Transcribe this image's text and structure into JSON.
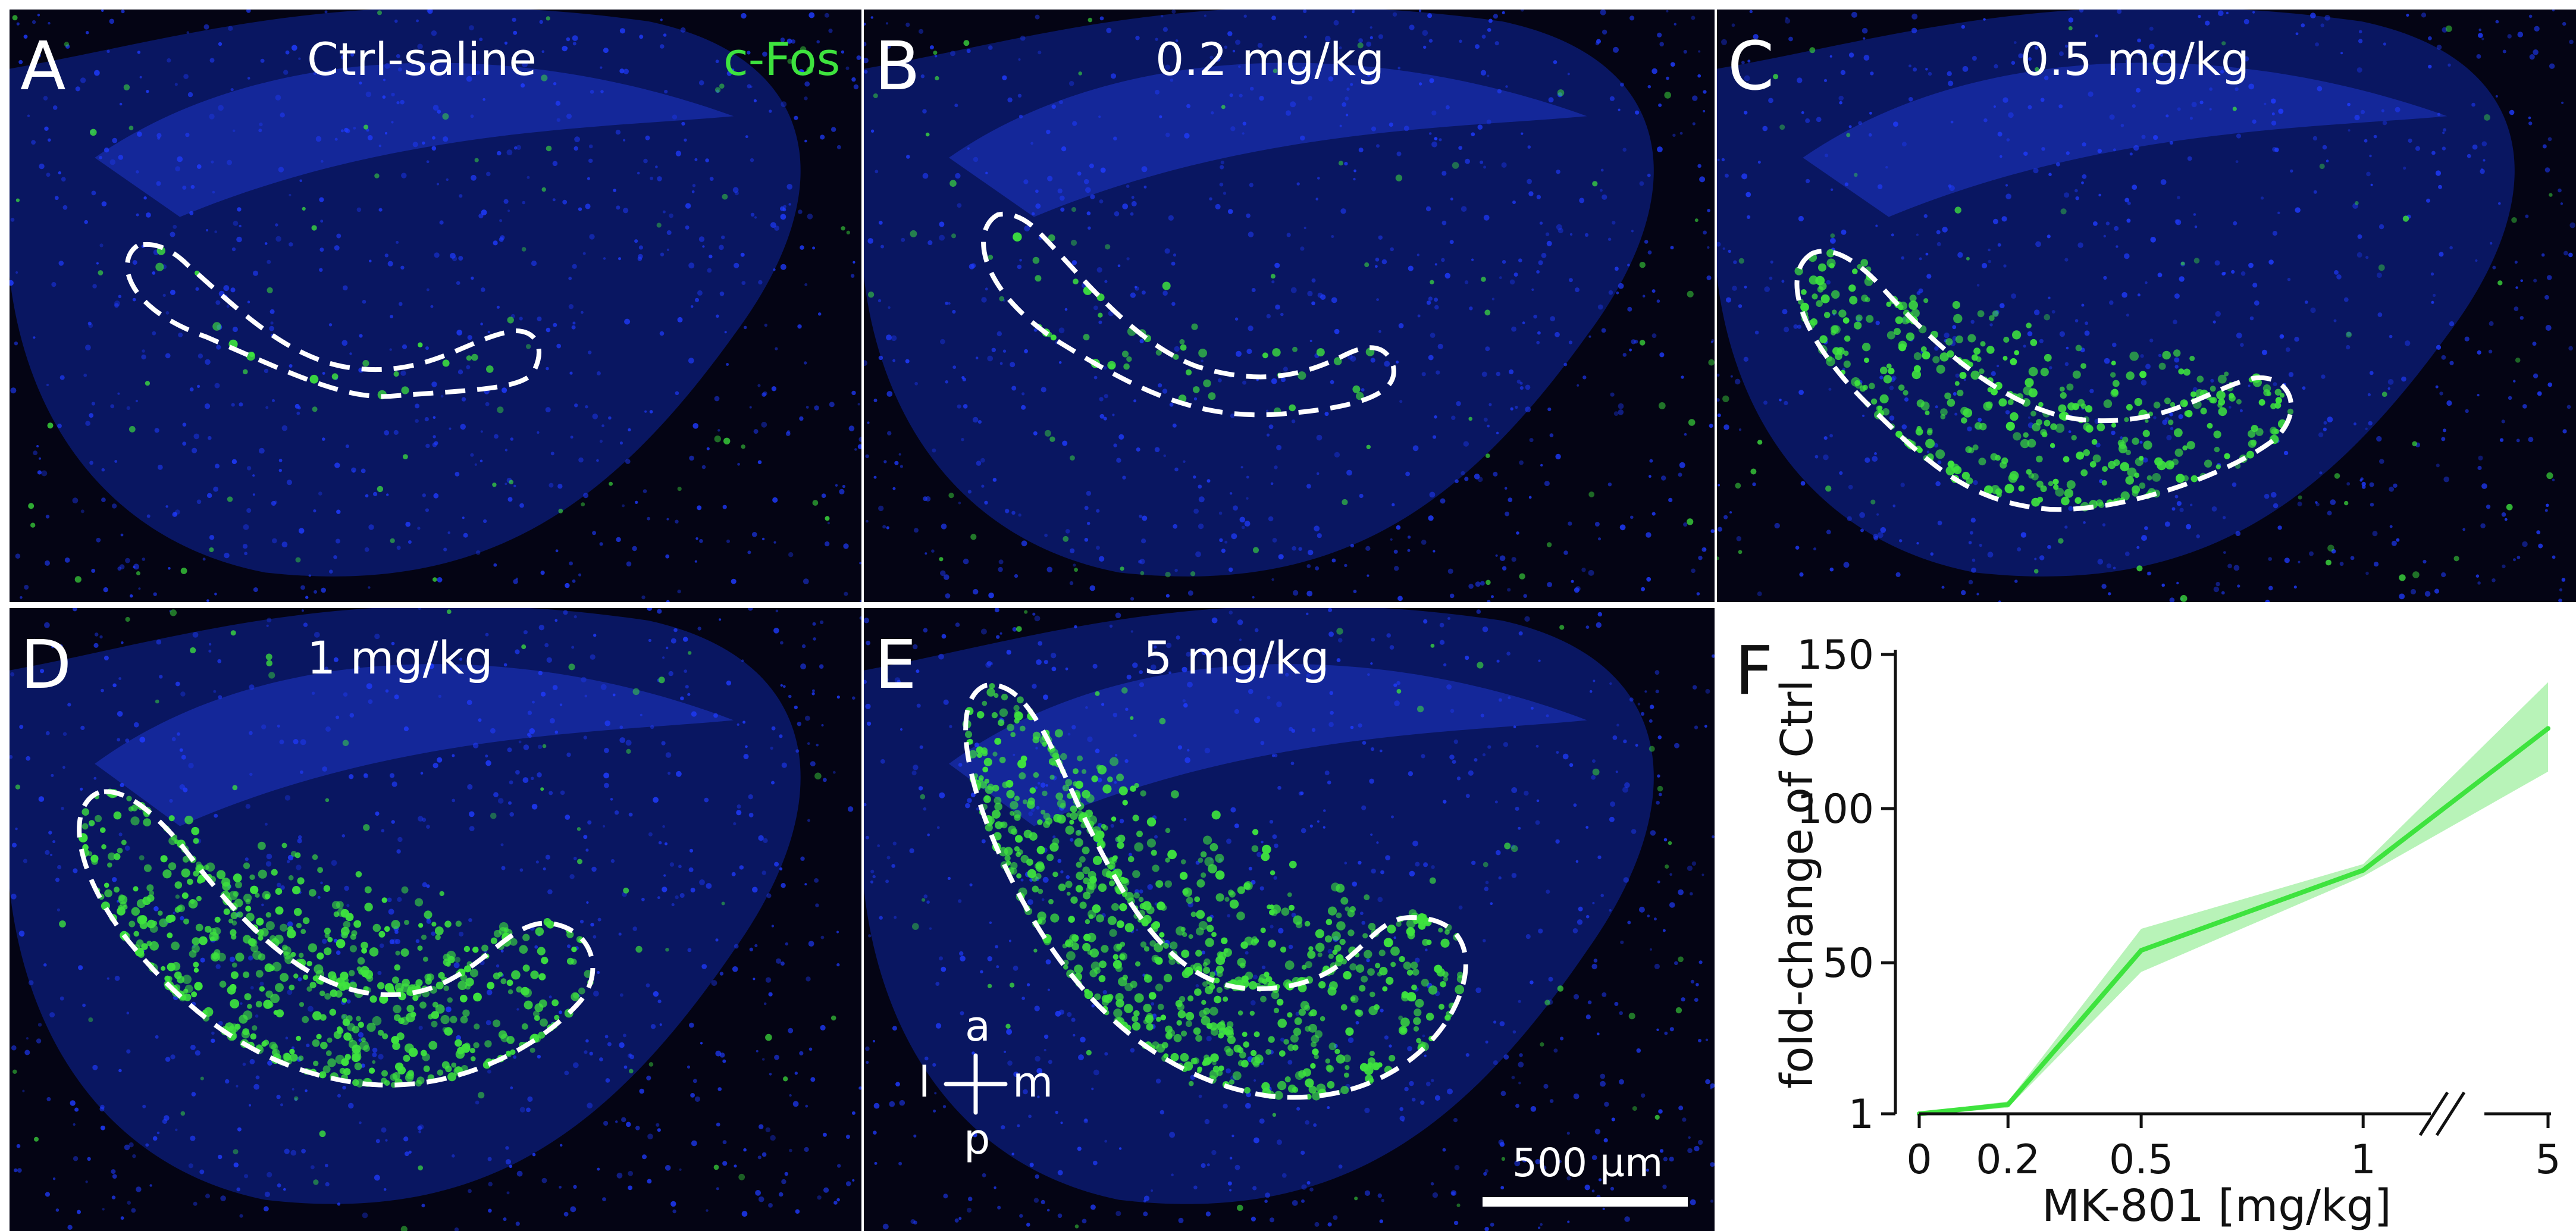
{
  "panels": [
    {
      "id": "A",
      "letter": "A",
      "title": "Ctrl-saline",
      "marker": "c-Fos",
      "cfos_density": 0.02
    },
    {
      "id": "B",
      "letter": "B",
      "title": "0.2 mg/kg",
      "cfos_density": 0.05
    },
    {
      "id": "C",
      "letter": "C",
      "title": "0.5 mg/kg",
      "cfos_density": 0.45
    },
    {
      "id": "D",
      "letter": "D",
      "title": "1 mg/kg",
      "cfos_density": 0.7
    },
    {
      "id": "E",
      "letter": "E",
      "title": "5 mg/kg",
      "cfos_density": 0.9
    }
  ],
  "marker_color": "#3ee33e",
  "nuclei_color": "#1f3bff",
  "outline_color": "#ffffff",
  "orientation": {
    "anterior": "a",
    "posterior": "p",
    "lateral": "l",
    "medial": "m"
  },
  "scale_bar": {
    "label": "500 µm"
  },
  "chart_data": {
    "type": "line",
    "panel_letter": "F",
    "x": [
      0,
      0.2,
      0.5,
      1,
      5
    ],
    "x_tick_labels": [
      "0",
      "0.2",
      "0.5",
      "1",
      "5"
    ],
    "x_axis_break": true,
    "series": [
      {
        "values": [
          1,
          4,
          54,
          80,
          126
        ],
        "ci_lower": [
          0.5,
          3,
          47,
          78,
          112
        ],
        "ci_upper": [
          1.5,
          5,
          61,
          82,
          141
        ],
        "color": "#3ee33e",
        "band_color": "#a6f0a6"
      }
    ],
    "y_tick_labels": [
      "1",
      "50",
      "100",
      "150"
    ],
    "y_ticks": [
      1,
      50,
      100,
      150
    ],
    "ylim": [
      1,
      150
    ],
    "xlabel": "MK-801 [mg/kg]",
    "ylabel": "fold-change of Ctrl",
    "grid": false
  }
}
